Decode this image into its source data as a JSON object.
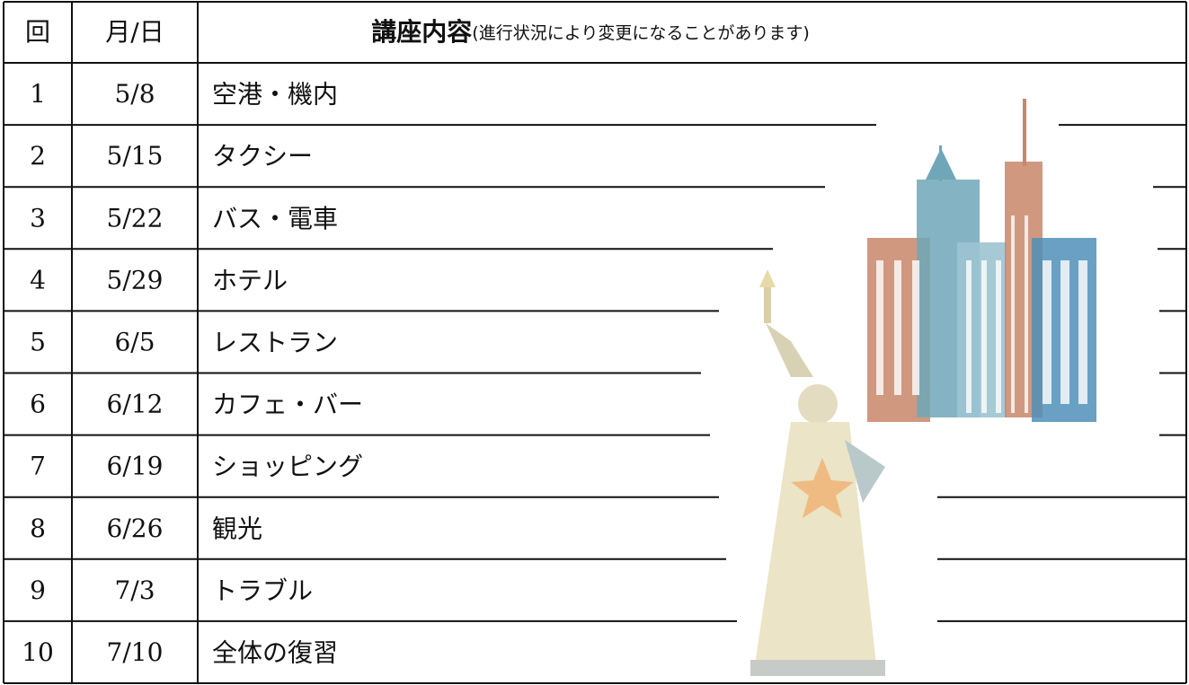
{
  "table": {
    "header": [
      "回",
      "月/日",
      "講座内容",
      "(進行状況により変更になることがあります)"
    ],
    "rows": [
      [
        "1",
        "5/8",
        "空港・機内"
      ],
      [
        "2",
        "5/15",
        "タクシー"
      ],
      [
        "3",
        "5/22",
        "バス・電車"
      ],
      [
        "4",
        "5/29",
        "ホテル"
      ],
      [
        "5",
        "6/5",
        "レストラン"
      ],
      [
        "6",
        "6/12",
        "カフェ・バー"
      ],
      [
        "7",
        "6/19",
        "ショッピング"
      ],
      [
        "8",
        "6/26",
        "観光"
      ],
      [
        "9",
        "7/3",
        "トラブル"
      ],
      [
        "10",
        "7/10",
        "全体の復習"
      ]
    ]
  }
}
